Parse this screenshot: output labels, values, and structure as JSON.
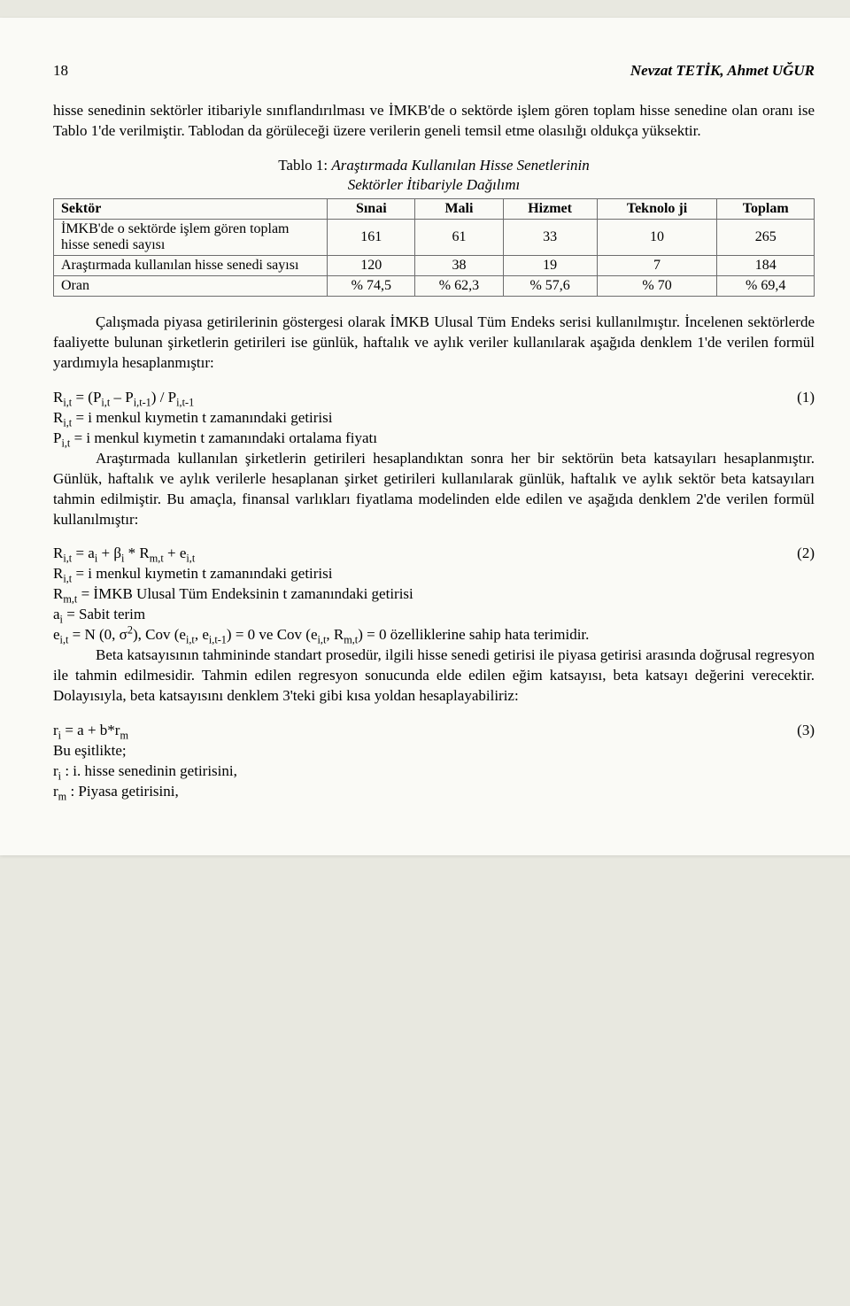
{
  "header": {
    "page_number": "18",
    "authors": "Nevzat TETİK, Ahmet UĞUR"
  },
  "paragraphs": {
    "p1": "hisse senedinin sektörler itibariyle sınıflandırılması ve İMKB'de o sektörde işlem gören toplam hisse senedine olan oranı ise Tablo 1'de verilmiştir. Tablodan da görüleceği üzere verilerin geneli temsil etme olasılığı oldukça yüksektir.",
    "p2": "Çalışmada piyasa getirilerinin göstergesi olarak İMKB Ulusal Tüm Endeks serisi kullanılmıştır. İncelenen sektörlerde faaliyette bulunan şirketlerin getirileri ise günlük, haftalık ve aylık veriler kullanılarak aşağıda denklem 1'de verilen formül yardımıyla hesaplanmıştır:",
    "p3": "Araştırmada kullanılan şirketlerin getirileri hesaplandıktan sonra her bir sektörün beta katsayıları hesaplanmıştır. Günlük, haftalık ve aylık verilerle hesaplanan şirket getirileri kullanılarak günlük, haftalık ve aylık sektör beta katsayıları tahmin edilmiştir. Bu amaçla, finansal varlıkları fiyatlama modelinden elde edilen ve aşağıda denklem 2'de verilen formül kullanılmıştır:",
    "p4": "Beta katsayısının tahmininde standart prosedür, ilgili hisse senedi getirisi ile piyasa getirisi arasında doğrusal regresyon ile tahmin edilmesidir. Tahmin edilen regresyon sonucunda elde edilen eğim katsayısı, beta katsayı değerini verecektir. Dolayısıyla, beta katsayısını denklem 3'teki gibi kısa yoldan hesaplayabiliriz:"
  },
  "table": {
    "caption_prefix": "Tablo 1: ",
    "caption_italic1": "Araştırmada Kullanılan Hisse Senetlerinin",
    "caption_italic2": "Sektörler İtibariyle Dağılımı",
    "headers": {
      "col0": "Sektör",
      "sinai": "Sınai",
      "mali": "Mali",
      "hizmet": "Hizmet",
      "teknoloji": "Teknolo\nji",
      "toplam": "Toplam"
    },
    "rows": [
      {
        "label": "İMKB'de o sektörde işlem gören toplam hisse senedi sayısı",
        "sinai": "161",
        "mali": "61",
        "hizmet": "33",
        "teknoloji": "10",
        "toplam": "265"
      },
      {
        "label": "Araştırmada kullanılan hisse senedi sayısı",
        "sinai": "120",
        "mali": "38",
        "hizmet": "19",
        "teknoloji": "7",
        "toplam": "184"
      },
      {
        "label": "Oran",
        "sinai": "% 74,5",
        "mali": "% 62,3",
        "hizmet": "% 57,6",
        "teknoloji": "% 70",
        "toplam": "% 69,4"
      }
    ]
  },
  "formulas": {
    "f1": {
      "text": "R_{i,t} = (P_{i,t} – P_{i,t-1}) / P_{i,t-1}",
      "num": "(1)"
    },
    "f1_expl1": "R_{i,t} = i menkul kıymetin t zamanındaki getirisi",
    "f1_expl2": "P_{i,t} = i menkul kıymetin t zamanındaki ortalama fiyatı",
    "f2": {
      "text": "R_{i,t} = a_{i} + β_{i} * R_{m,t} + e_{i,t}",
      "num": "(2)"
    },
    "f2_expl1": "R_{i,t}  = i menkul kıymetin t zamanındaki getirisi",
    "f2_expl2": "R_{m,t} = İMKB Ulusal Tüm Endeksinin t zamanındaki getirisi",
    "f2_expl3": "a_{i}    = Sabit terim",
    "f2_expl4": "e_{i,t}  = N (0, σ^{2}), Cov (e_{i,t}, e_{i,t-1}) = 0 ve Cov (e_{i,t}, R_{m,t}) = 0 özelliklerine sahip hata terimidir.",
    "f3": {
      "text": "r_{i} = a + b*r_{m}",
      "num": "(3)"
    },
    "f3_expl0": "Bu eşitlikte;",
    "f3_expl1": "r_{i} : i. hisse senedinin getirisini,",
    "f3_expl2": "r_{m} : Piyasa getirisini,"
  }
}
